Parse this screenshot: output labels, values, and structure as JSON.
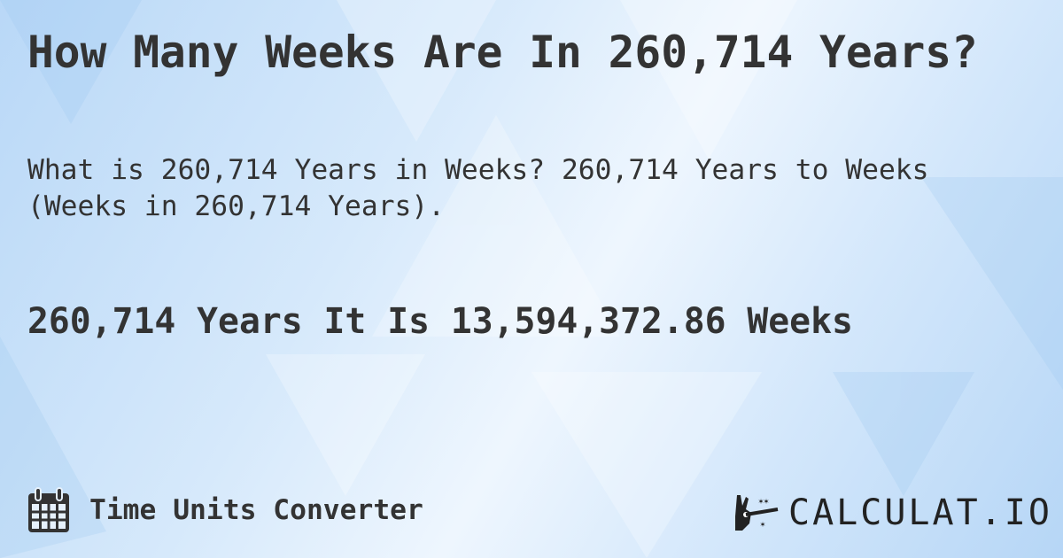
{
  "header": {
    "title": "How Many Weeks Are In 260,714 Years?"
  },
  "description": "What is 260,714 Years in Weeks? 260,714 Years to Weeks (Weeks in 260,714 Years).",
  "result": "260,714 Years It Is 13,594,372.86 Weeks",
  "footer": {
    "category_icon": "calendar-icon",
    "category_label": "Time Units Converter"
  },
  "brand": {
    "logo_icon": "magic-hand-wand-icon",
    "name": "CALCULAT.IO"
  },
  "colors": {
    "text": "#333333",
    "background": "#cfe4fa"
  }
}
